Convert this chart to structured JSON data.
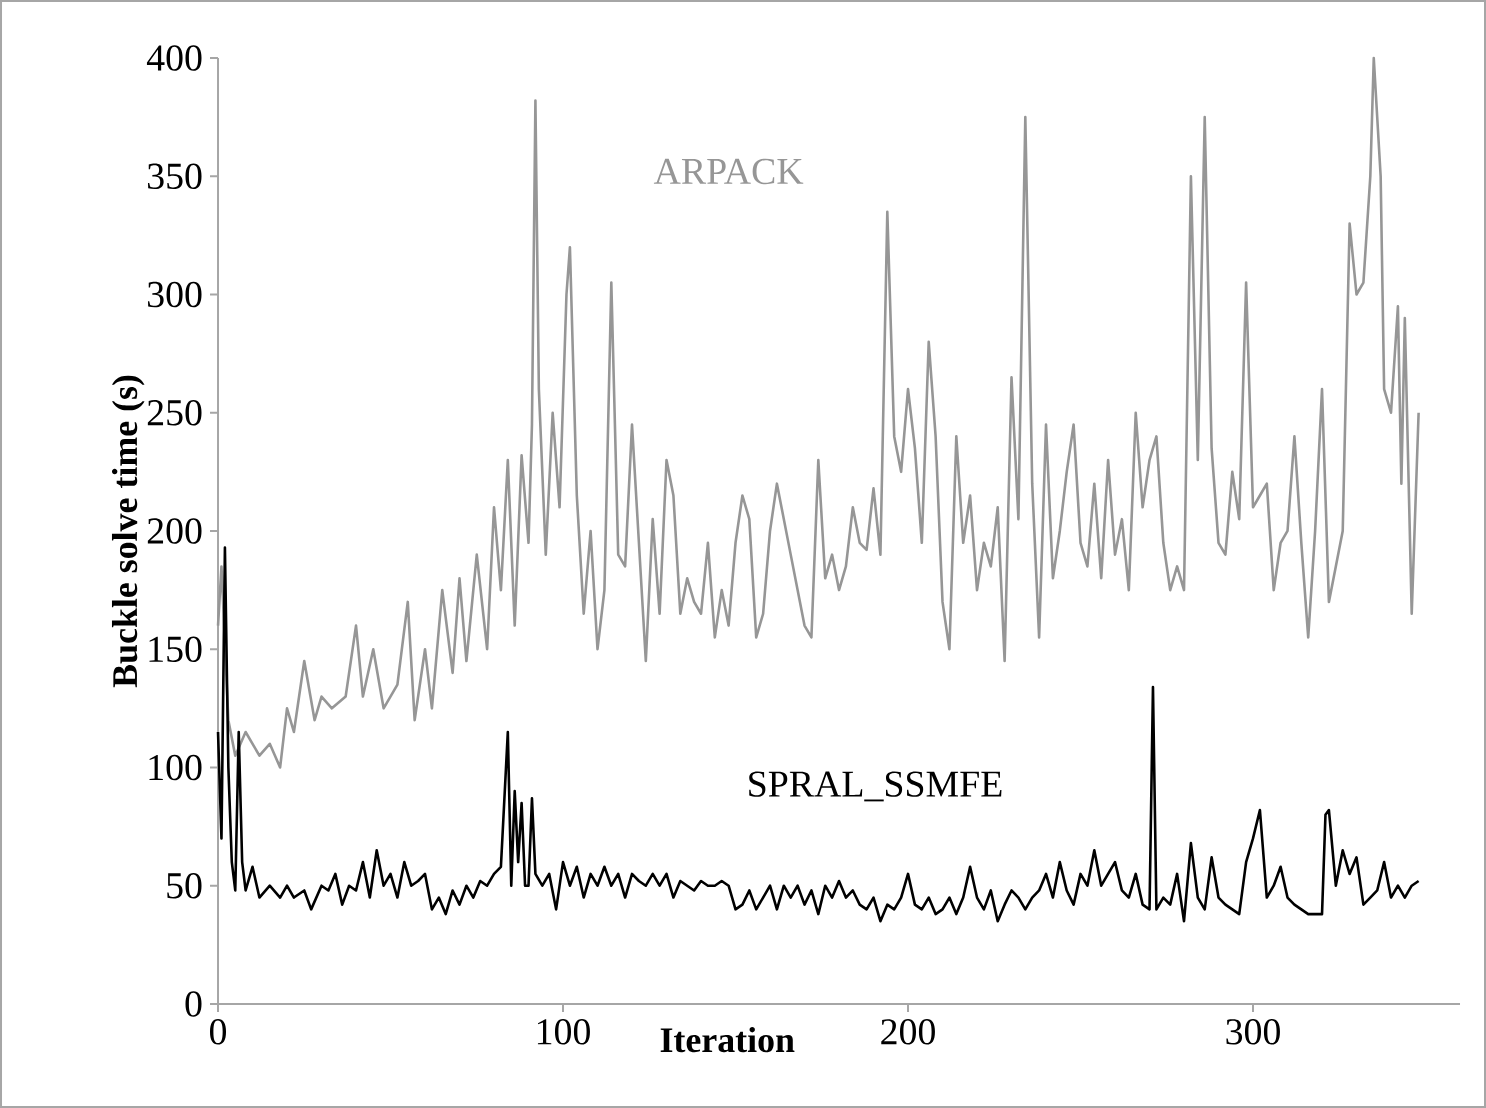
{
  "chart_data": {
    "type": "line",
    "xlabel": "Iteration",
    "ylabel": "Buckle solve time (s)",
    "xlim": [
      0,
      360
    ],
    "ylim": [
      0,
      400
    ],
    "xticks": [
      0,
      100,
      200,
      300
    ],
    "yticks": [
      0,
      50,
      100,
      150,
      200,
      250,
      300,
      350,
      400
    ],
    "grid": false,
    "legend": false,
    "marker": "none",
    "line_style": "solid",
    "series": [
      {
        "name": "ARPACK",
        "color": "#969696",
        "x": [
          0,
          1,
          3,
          5,
          8,
          12,
          15,
          18,
          20,
          22,
          25,
          28,
          30,
          33,
          37,
          40,
          42,
          45,
          48,
          52,
          55,
          57,
          60,
          62,
          65,
          68,
          70,
          72,
          75,
          78,
          80,
          82,
          84,
          86,
          88,
          90,
          91,
          92,
          93,
          95,
          97,
          99,
          101,
          102,
          104,
          106,
          108,
          110,
          112,
          114,
          116,
          118,
          120,
          122,
          124,
          126,
          128,
          130,
          132,
          134,
          136,
          138,
          140,
          142,
          144,
          146,
          148,
          150,
          152,
          154,
          156,
          158,
          160,
          162,
          164,
          166,
          168,
          170,
          172,
          174,
          176,
          178,
          180,
          182,
          184,
          186,
          188,
          190,
          192,
          194,
          196,
          198,
          200,
          202,
          204,
          206,
          208,
          210,
          212,
          214,
          216,
          218,
          220,
          222,
          224,
          226,
          228,
          230,
          232,
          234,
          236,
          238,
          240,
          242,
          244,
          246,
          248,
          250,
          252,
          254,
          256,
          258,
          260,
          262,
          264,
          266,
          268,
          270,
          272,
          274,
          276,
          278,
          280,
          282,
          284,
          286,
          288,
          290,
          292,
          294,
          296,
          298,
          300,
          302,
          304,
          306,
          308,
          310,
          312,
          314,
          316,
          318,
          320,
          322,
          324,
          326,
          328,
          330,
          332,
          334,
          335,
          337,
          338,
          340,
          342,
          343,
          344,
          346,
          348
        ],
        "values": [
          160,
          185,
          120,
          105,
          115,
          105,
          110,
          100,
          125,
          115,
          145,
          120,
          130,
          125,
          130,
          160,
          130,
          150,
          125,
          135,
          170,
          120,
          150,
          125,
          175,
          140,
          180,
          145,
          190,
          150,
          210,
          175,
          230,
          160,
          232,
          195,
          245,
          382,
          260,
          190,
          250,
          210,
          300,
          320,
          215,
          165,
          200,
          150,
          175,
          305,
          190,
          185,
          245,
          195,
          145,
          205,
          165,
          230,
          215,
          165,
          180,
          170,
          165,
          195,
          155,
          175,
          160,
          195,
          215,
          205,
          155,
          165,
          200,
          220,
          205,
          190,
          175,
          160,
          155,
          230,
          180,
          190,
          175,
          185,
          210,
          195,
          192,
          218,
          190,
          335,
          240,
          225,
          260,
          235,
          195,
          280,
          240,
          170,
          150,
          240,
          195,
          215,
          175,
          195,
          185,
          210,
          145,
          265,
          205,
          375,
          220,
          155,
          245,
          180,
          200,
          225,
          245,
          195,
          185,
          220,
          180,
          230,
          190,
          205,
          175,
          250,
          210,
          230,
          240,
          195,
          175,
          185,
          175,
          350,
          230,
          375,
          235,
          195,
          190,
          225,
          205,
          305,
          210,
          215,
          220,
          175,
          195,
          200,
          240,
          195,
          155,
          200,
          260,
          170,
          185,
          200,
          330,
          300,
          305,
          350,
          400,
          350,
          260,
          250,
          295,
          220,
          290,
          165,
          250
        ]
      },
      {
        "name": "SPRAL_SSMFE",
        "color": "#000000",
        "x": [
          0,
          1,
          2,
          3,
          4,
          5,
          6,
          7,
          8,
          10,
          12,
          15,
          18,
          20,
          22,
          25,
          27,
          30,
          32,
          34,
          36,
          38,
          40,
          42,
          44,
          46,
          48,
          50,
          52,
          54,
          56,
          58,
          60,
          62,
          64,
          66,
          68,
          70,
          72,
          74,
          76,
          78,
          80,
          82,
          84,
          85,
          86,
          87,
          88,
          89,
          90,
          91,
          92,
          94,
          96,
          98,
          100,
          102,
          104,
          106,
          108,
          110,
          112,
          114,
          116,
          118,
          120,
          122,
          124,
          126,
          128,
          130,
          132,
          134,
          136,
          138,
          140,
          142,
          144,
          146,
          148,
          150,
          152,
          154,
          156,
          158,
          160,
          162,
          164,
          166,
          168,
          170,
          172,
          174,
          176,
          178,
          180,
          182,
          184,
          186,
          188,
          190,
          192,
          194,
          196,
          198,
          200,
          202,
          204,
          206,
          208,
          210,
          212,
          214,
          216,
          218,
          220,
          222,
          224,
          226,
          228,
          230,
          232,
          234,
          236,
          238,
          240,
          242,
          244,
          246,
          248,
          250,
          252,
          254,
          256,
          258,
          260,
          262,
          264,
          266,
          268,
          270,
          271,
          272,
          274,
          276,
          278,
          280,
          282,
          284,
          286,
          288,
          290,
          292,
          294,
          296,
          298,
          300,
          302,
          304,
          306,
          308,
          310,
          312,
          314,
          316,
          318,
          320,
          321,
          322,
          324,
          326,
          328,
          330,
          332,
          334,
          336,
          338,
          340,
          342,
          344,
          346,
          348
        ],
        "values": [
          115,
          70,
          193,
          100,
          60,
          48,
          115,
          60,
          48,
          58,
          45,
          50,
          45,
          50,
          45,
          48,
          40,
          50,
          48,
          55,
          42,
          50,
          48,
          60,
          45,
          65,
          50,
          55,
          45,
          60,
          50,
          52,
          55,
          40,
          45,
          38,
          48,
          42,
          50,
          45,
          52,
          50,
          55,
          58,
          115,
          50,
          90,
          60,
          85,
          50,
          50,
          87,
          55,
          50,
          55,
          40,
          60,
          50,
          58,
          45,
          55,
          50,
          58,
          50,
          55,
          45,
          55,
          52,
          50,
          55,
          50,
          55,
          45,
          52,
          50,
          48,
          52,
          50,
          50,
          52,
          50,
          40,
          42,
          48,
          40,
          45,
          50,
          40,
          50,
          45,
          50,
          42,
          48,
          38,
          50,
          45,
          52,
          45,
          48,
          42,
          40,
          45,
          35,
          42,
          40,
          45,
          55,
          42,
          40,
          45,
          38,
          40,
          45,
          38,
          45,
          58,
          45,
          40,
          48,
          35,
          42,
          48,
          45,
          40,
          45,
          48,
          55,
          45,
          60,
          48,
          42,
          55,
          50,
          65,
          50,
          55,
          60,
          48,
          45,
          55,
          42,
          40,
          134,
          40,
          45,
          42,
          55,
          35,
          68,
          45,
          40,
          62,
          45,
          42,
          40,
          38,
          60,
          70,
          82,
          45,
          50,
          58,
          45,
          42,
          40,
          38,
          38,
          38,
          80,
          82,
          50,
          65,
          55,
          62,
          42,
          45,
          48,
          60,
          45,
          50,
          45,
          50,
          52
        ]
      }
    ]
  }
}
